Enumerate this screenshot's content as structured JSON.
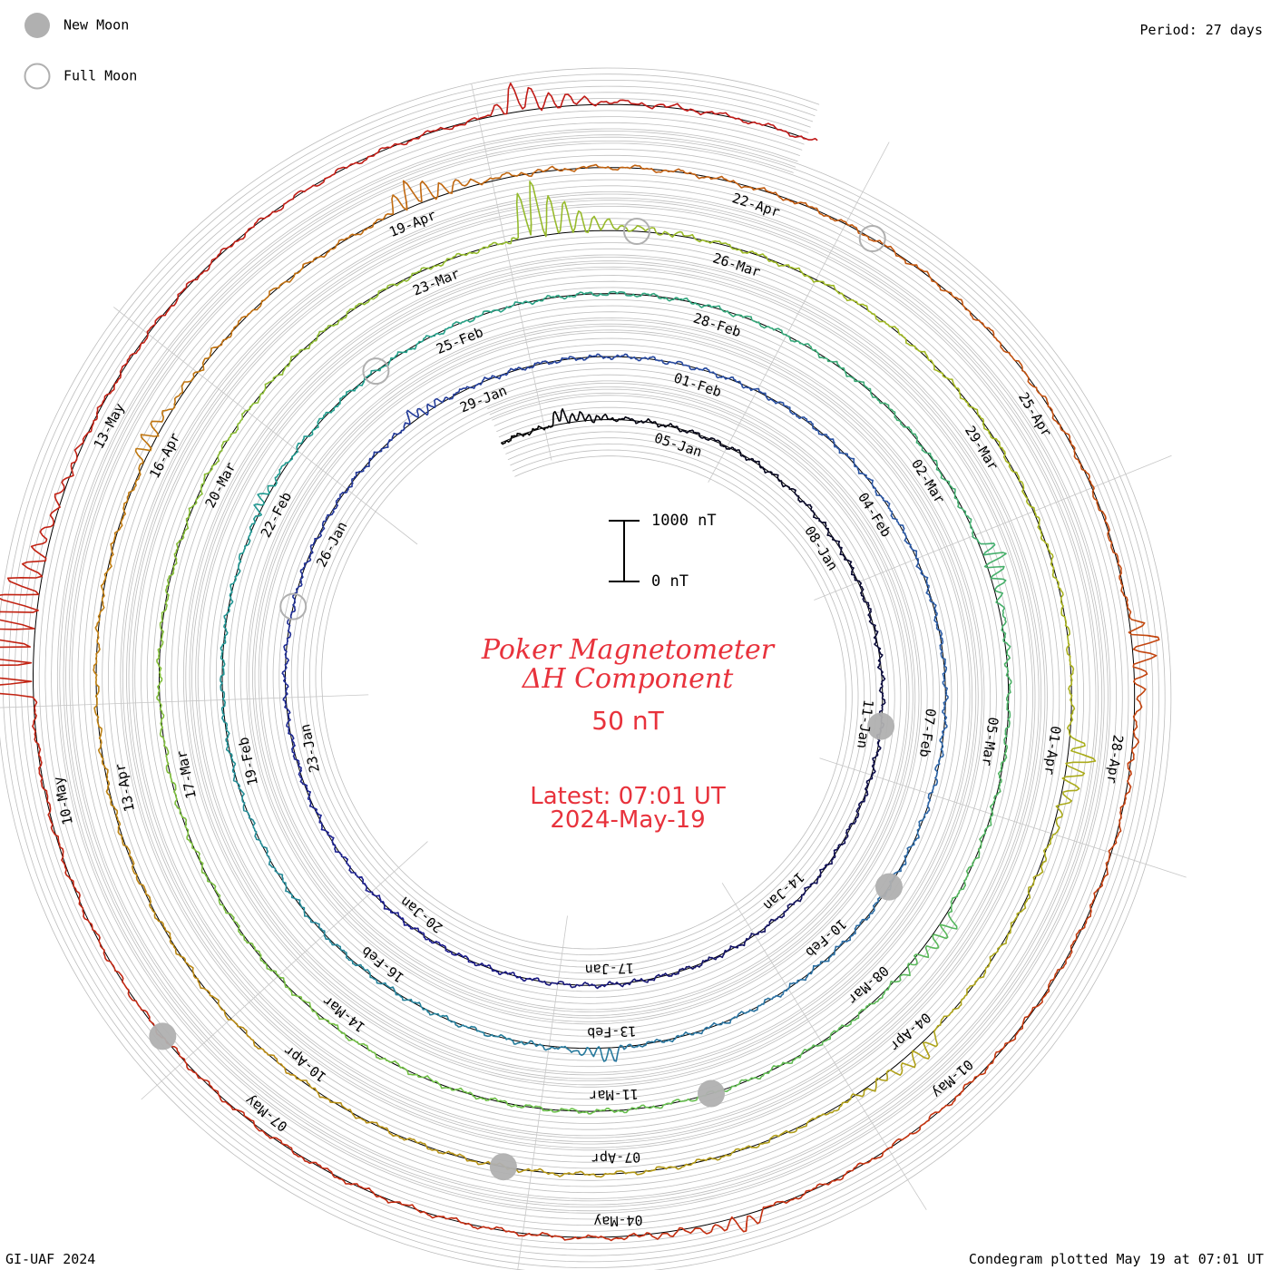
{
  "legend": {
    "new_moon_label": "New Moon",
    "full_moon_label": "Full Moon"
  },
  "period_label": "Period: 27 days",
  "title": {
    "line1": "Poker Magnetometer",
    "line2": "ΔH Component",
    "units": "50 nT",
    "latest_time": "Latest: 07:01 UT",
    "latest_date": "2024-May-19"
  },
  "scale_bar": {
    "top_label": "1000 nT",
    "bottom_label": "0 nT"
  },
  "footer": {
    "credit": "GI-UAF 2024",
    "plotted": "Condegram plotted May 19 at 07:01 UT"
  },
  "chart_data": {
    "type": "line",
    "title": "Poker Magnetometer ΔH Component",
    "period_days": 27,
    "series_colors": [
      "#000000",
      "#1a1a8c",
      "#2d5fa8",
      "#1f9e8f",
      "#6cc04a",
      "#a6b820",
      "#c07a10",
      "#c43010",
      "#c01818"
    ],
    "start_date": "2024-01-02",
    "end_date": "2024-05-19",
    "date_tick_labels": [
      "05-Jan",
      "08-Jan",
      "11-Jan",
      "14-Jan",
      "17-Jan",
      "20-Jan",
      "23-Jan",
      "26-Jan",
      "29-Jan",
      "01-Feb",
      "04-Feb",
      "07-Feb",
      "10-Feb",
      "13-Feb",
      "16-Feb",
      "19-Feb",
      "22-Feb",
      "25-Feb",
      "28-Feb",
      "02-Mar",
      "05-Mar",
      "08-Mar",
      "11-Mar",
      "14-Mar",
      "17-Mar",
      "20-Mar",
      "23-Mar",
      "26-Mar",
      "29-Mar",
      "01-Apr",
      "04-Apr",
      "07-Apr",
      "10-Apr",
      "13-Apr",
      "16-Apr",
      "19-Apr",
      "22-Apr",
      "25-Apr",
      "28-Apr",
      "01-May",
      "04-May",
      "07-May",
      "10-May",
      "13-May"
    ],
    "new_moons": [
      "2024-01-11",
      "2024-02-09",
      "2024-03-10",
      "2024-04-08",
      "2024-05-08"
    ],
    "full_moons": [
      "2024-01-25",
      "2024-02-24",
      "2024-03-25",
      "2024-04-23"
    ],
    "events": [
      {
        "date": "2024-01-03",
        "dh_nT": -300
      },
      {
        "date": "2024-01-28",
        "dh_nT": -200
      },
      {
        "date": "2024-02-13",
        "dh_nT": -250
      },
      {
        "date": "2024-02-22",
        "dh_nT": -150
      },
      {
        "date": "2024-03-03",
        "dh_nT": -400
      },
      {
        "date": "2024-03-07",
        "dh_nT": -350
      },
      {
        "date": "2024-03-24",
        "dh_nT": -1100
      },
      {
        "date": "2024-04-01",
        "dh_nT": -500
      },
      {
        "date": "2024-04-04",
        "dh_nT": -350
      },
      {
        "date": "2024-04-16",
        "dh_nT": -300
      },
      {
        "date": "2024-04-19",
        "dh_nT": -500
      },
      {
        "date": "2024-04-27",
        "dh_nT": -500
      },
      {
        "date": "2024-05-03",
        "dh_nT": -300
      },
      {
        "date": "2024-05-11",
        "dh_nT": -2800
      },
      {
        "date": "2024-05-17",
        "dh_nT": -500
      }
    ]
  }
}
